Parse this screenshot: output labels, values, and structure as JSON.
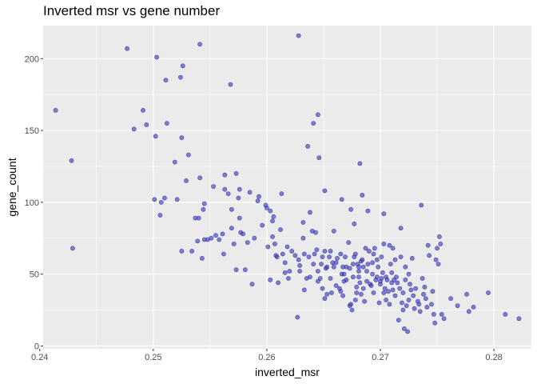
{
  "chart_data": {
    "type": "scatter",
    "title": "Inverted msr vs gene number",
    "xlabel": "inverted_msr",
    "ylabel": "gene_count",
    "xlim": [
      0.2403,
      0.2833
    ],
    "ylim": [
      -2,
      223
    ],
    "x_ticks": [
      0.24,
      0.25,
      0.26,
      0.27,
      0.28
    ],
    "x_tick_labels": [
      "0.24",
      "0.25",
      "0.26",
      "0.27",
      "0.28"
    ],
    "y_ticks": [
      0,
      50,
      100,
      150,
      200
    ],
    "y_tick_labels": [
      "0",
      "50",
      "100",
      "150",
      "200"
    ],
    "grid": true,
    "point_color": "#3333B2",
    "panel_background": "#EBEBEB",
    "points": [
      [
        0.2414,
        164
      ],
      [
        0.2428,
        129
      ],
      [
        0.2429,
        68
      ],
      [
        0.2477,
        207
      ],
      [
        0.2483,
        151
      ],
      [
        0.2491,
        164
      ],
      [
        0.2494,
        154
      ],
      [
        0.2501,
        102
      ],
      [
        0.2502,
        146
      ],
      [
        0.2503,
        201
      ],
      [
        0.2506,
        91
      ],
      [
        0.2507,
        100
      ],
      [
        0.251,
        103
      ],
      [
        0.2511,
        185
      ],
      [
        0.2512,
        155
      ],
      [
        0.2519,
        128
      ],
      [
        0.2521,
        102
      ],
      [
        0.2524,
        187
      ],
      [
        0.2525,
        145
      ],
      [
        0.2526,
        195
      ],
      [
        0.2525,
        66
      ],
      [
        0.2529,
        115
      ],
      [
        0.2531,
        133
      ],
      [
        0.2534,
        66
      ],
      [
        0.2537,
        89
      ],
      [
        0.2539,
        73
      ],
      [
        0.254,
        89
      ],
      [
        0.2541,
        210
      ],
      [
        0.2541,
        117
      ],
      [
        0.2544,
        95
      ],
      [
        0.2545,
        99
      ],
      [
        0.2545,
        74
      ],
      [
        0.2543,
        61
      ],
      [
        0.2548,
        74
      ],
      [
        0.2551,
        75
      ],
      [
        0.2553,
        111
      ],
      [
        0.2555,
        77
      ],
      [
        0.2558,
        74
      ],
      [
        0.2561,
        78
      ],
      [
        0.2562,
        64
      ],
      [
        0.2563,
        119
      ],
      [
        0.2563,
        109
      ],
      [
        0.2566,
        106
      ],
      [
        0.2568,
        182
      ],
      [
        0.2569,
        82
      ],
      [
        0.2569,
        95
      ],
      [
        0.2571,
        71
      ],
      [
        0.2573,
        120
      ],
      [
        0.2573,
        53
      ],
      [
        0.2575,
        103
      ],
      [
        0.2576,
        89
      ],
      [
        0.2577,
        79
      ],
      [
        0.2576,
        109
      ],
      [
        0.2579,
        78
      ],
      [
        0.2581,
        53
      ],
      [
        0.2583,
        72
      ],
      [
        0.2585,
        107
      ],
      [
        0.2587,
        43
      ],
      [
        0.2589,
        75
      ],
      [
        0.2592,
        101
      ],
      [
        0.2593,
        104
      ],
      [
        0.2596,
        84
      ],
      [
        0.2599,
        98
      ],
      [
        0.26,
        96
      ],
      [
        0.2601,
        69
      ],
      [
        0.2603,
        46
      ],
      [
        0.2603,
        94
      ],
      [
        0.2605,
        87
      ],
      [
        0.2605,
        76
      ],
      [
        0.2606,
        90
      ],
      [
        0.2607,
        71
      ],
      [
        0.2609,
        62
      ],
      [
        0.2608,
        63
      ],
      [
        0.261,
        44
      ],
      [
        0.2612,
        81
      ],
      [
        0.2613,
        106
      ],
      [
        0.2614,
        64
      ],
      [
        0.2616,
        58
      ],
      [
        0.2618,
        69
      ],
      [
        0.2616,
        51
      ],
      [
        0.2619,
        47
      ],
      [
        0.262,
        52
      ],
      [
        0.2622,
        66
      ],
      [
        0.2625,
        63
      ],
      [
        0.2627,
        20
      ],
      [
        0.2628,
        216
      ],
      [
        0.2629,
        56
      ],
      [
        0.2628,
        60
      ],
      [
        0.2629,
        52
      ],
      [
        0.2632,
        75
      ],
      [
        0.2632,
        86
      ],
      [
        0.2633,
        64
      ],
      [
        0.2633,
        39
      ],
      [
        0.2635,
        47
      ],
      [
        0.2636,
        139
      ],
      [
        0.2637,
        62
      ],
      [
        0.2638,
        48
      ],
      [
        0.2638,
        93
      ],
      [
        0.264,
        80
      ],
      [
        0.2641,
        155
      ],
      [
        0.2642,
        64
      ],
      [
        0.2641,
        57
      ],
      [
        0.2643,
        79
      ],
      [
        0.2645,
        161
      ],
      [
        0.2644,
        67
      ],
      [
        0.2645,
        45
      ],
      [
        0.2645,
        52
      ],
      [
        0.2646,
        131
      ],
      [
        0.2647,
        47
      ],
      [
        0.2648,
        57
      ],
      [
        0.2649,
        62
      ],
      [
        0.2649,
        40
      ],
      [
        0.2651,
        108
      ],
      [
        0.2651,
        66
      ],
      [
        0.2651,
        33
      ],
      [
        0.2652,
        54
      ],
      [
        0.2653,
        55
      ],
      [
        0.2653,
        36
      ],
      [
        0.2655,
        62
      ],
      [
        0.2656,
        47
      ],
      [
        0.2656,
        66
      ],
      [
        0.2657,
        37
      ],
      [
        0.2658,
        58
      ],
      [
        0.2659,
        80
      ],
      [
        0.2659,
        55
      ],
      [
        0.2661,
        42
      ],
      [
        0.2661,
        58
      ],
      [
        0.2662,
        61
      ],
      [
        0.2664,
        40
      ],
      [
        0.2665,
        38
      ],
      [
        0.2665,
        64
      ],
      [
        0.2666,
        50
      ],
      [
        0.2666,
        102
      ],
      [
        0.2667,
        35
      ],
      [
        0.2667,
        55
      ],
      [
        0.2668,
        50
      ],
      [
        0.2668,
        45
      ],
      [
        0.2669,
        62
      ],
      [
        0.267,
        46
      ],
      [
        0.267,
        55
      ],
      [
        0.2672,
        72
      ],
      [
        0.2673,
        54
      ],
      [
        0.2673,
        28
      ],
      [
        0.2674,
        95
      ],
      [
        0.2674,
        29
      ],
      [
        0.2675,
        25
      ],
      [
        0.2676,
        57
      ],
      [
        0.2676,
        48
      ],
      [
        0.2677,
        62
      ],
      [
        0.2677,
        85
      ],
      [
        0.2678,
        64
      ],
      [
        0.2678,
        32
      ],
      [
        0.2679,
        41
      ],
      [
        0.2679,
        37
      ],
      [
        0.268,
        57
      ],
      [
        0.2681,
        55
      ],
      [
        0.2681,
        52
      ],
      [
        0.2681,
        48
      ],
      [
        0.2682,
        127
      ],
      [
        0.2682,
        44
      ],
      [
        0.2683,
        59
      ],
      [
        0.2683,
        36
      ],
      [
        0.2684,
        105
      ],
      [
        0.2684,
        60
      ],
      [
        0.2685,
        55
      ],
      [
        0.2685,
        40
      ],
      [
        0.2686,
        31
      ],
      [
        0.2687,
        68
      ],
      [
        0.2688,
        52
      ],
      [
        0.2688,
        45
      ],
      [
        0.2689,
        57
      ],
      [
        0.2689,
        94
      ],
      [
        0.269,
        66
      ],
      [
        0.2691,
        43
      ],
      [
        0.2692,
        42
      ],
      [
        0.2693,
        58
      ],
      [
        0.2693,
        50
      ],
      [
        0.2694,
        64
      ],
      [
        0.2694,
        37
      ],
      [
        0.2695,
        68
      ],
      [
        0.2696,
        46
      ],
      [
        0.2697,
        60
      ],
      [
        0.2697,
        48
      ],
      [
        0.2698,
        55
      ],
      [
        0.2699,
        30
      ],
      [
        0.27,
        45
      ],
      [
        0.27,
        43
      ],
      [
        0.2701,
        47
      ],
      [
        0.2701,
        62
      ],
      [
        0.2702,
        51
      ],
      [
        0.2703,
        71
      ],
      [
        0.2703,
        37
      ],
      [
        0.2703,
        92
      ],
      [
        0.2704,
        40
      ],
      [
        0.2705,
        48
      ],
      [
        0.2705,
        32
      ],
      [
        0.2706,
        46
      ],
      [
        0.2707,
        38
      ],
      [
        0.2708,
        70
      ],
      [
        0.2708,
        29
      ],
      [
        0.2709,
        57
      ],
      [
        0.271,
        51
      ],
      [
        0.271,
        44
      ],
      [
        0.2711,
        68
      ],
      [
        0.2711,
        39
      ],
      [
        0.2712,
        46
      ],
      [
        0.2713,
        60
      ],
      [
        0.2713,
        35
      ],
      [
        0.2714,
        48
      ],
      [
        0.2715,
        44
      ],
      [
        0.2716,
        18
      ],
      [
        0.2717,
        40
      ],
      [
        0.2718,
        82
      ],
      [
        0.2718,
        62
      ],
      [
        0.2719,
        30
      ],
      [
        0.272,
        25
      ],
      [
        0.272,
        37
      ],
      [
        0.2721,
        12
      ],
      [
        0.2722,
        46
      ],
      [
        0.2722,
        55
      ],
      [
        0.2723,
        28
      ],
      [
        0.2724,
        10
      ],
      [
        0.2725,
        50
      ],
      [
        0.2725,
        32
      ],
      [
        0.2726,
        43
      ],
      [
        0.2727,
        39
      ],
      [
        0.2728,
        61
      ],
      [
        0.2729,
        35
      ],
      [
        0.273,
        26
      ],
      [
        0.2731,
        40
      ],
      [
        0.2733,
        31
      ],
      [
        0.2734,
        29
      ],
      [
        0.2735,
        24
      ],
      [
        0.2736,
        98
      ],
      [
        0.2737,
        47
      ],
      [
        0.2738,
        36
      ],
      [
        0.2739,
        41
      ],
      [
        0.274,
        33
      ],
      [
        0.2741,
        27
      ],
      [
        0.2742,
        70
      ],
      [
        0.2743,
        63
      ],
      [
        0.2745,
        29
      ],
      [
        0.2746,
        38
      ],
      [
        0.2747,
        22
      ],
      [
        0.2748,
        16
      ],
      [
        0.2749,
        60
      ],
      [
        0.275,
        68
      ],
      [
        0.2751,
        57
      ],
      [
        0.2752,
        76
      ],
      [
        0.2753,
        71
      ],
      [
        0.2754,
        22
      ],
      [
        0.2756,
        19
      ],
      [
        0.2762,
        33
      ],
      [
        0.2768,
        28
      ],
      [
        0.2776,
        36
      ],
      [
        0.2778,
        24
      ],
      [
        0.2782,
        27
      ],
      [
        0.2795,
        37
      ],
      [
        0.281,
        22
      ],
      [
        0.2822,
        19
      ]
    ]
  }
}
